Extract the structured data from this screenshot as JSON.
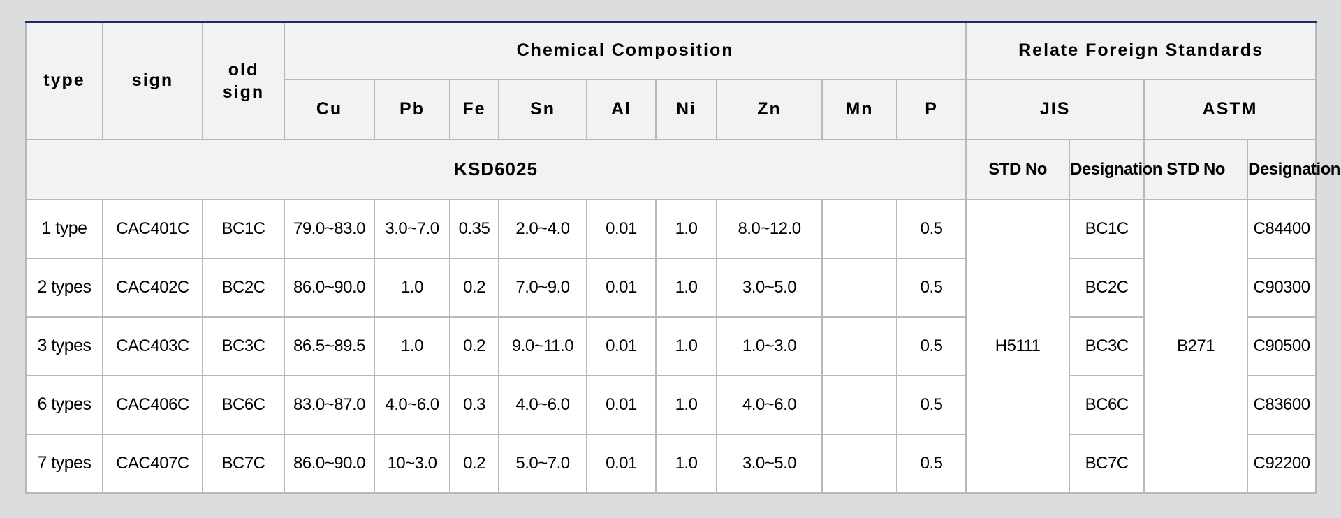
{
  "headers": {
    "type": "type",
    "sign": "sign",
    "old_sign": "old sign",
    "chemical_composition": "Chemical Composition",
    "relate_foreign_standards": "Relate Foreign Standards",
    "elements": [
      "Cu",
      "Pb",
      "Fe",
      "Sn",
      "Al",
      "Ni",
      "Zn",
      "Mn",
      "P"
    ],
    "jis": "JIS",
    "astm": "ASTM"
  },
  "standard_row": {
    "ksd": "KSD6025",
    "jis_std_no": "STD No",
    "jis_designation": "Designation",
    "astm_std_no": "STD No",
    "astm_designation": "Designation"
  },
  "jis_std_value": "H5111",
  "astm_std_value": "B271",
  "rows": [
    {
      "type": "1 type",
      "sign": "CAC401C",
      "old_sign": "BC1C",
      "cu": "79.0~83.0",
      "pb": "3.0~7.0",
      "fe": "0.35",
      "sn": "2.0~4.0",
      "al": "0.01",
      "ni": "1.0",
      "zn": "8.0~12.0",
      "mn": "",
      "p": "0.5",
      "jis_designation": "BC1C",
      "astm_designation": "C84400"
    },
    {
      "type": "2 types",
      "sign": "CAC402C",
      "old_sign": "BC2C",
      "cu": "86.0~90.0",
      "pb": "1.0",
      "fe": "0.2",
      "sn": "7.0~9.0",
      "al": "0.01",
      "ni": "1.0",
      "zn": "3.0~5.0",
      "mn": "",
      "p": "0.5",
      "jis_designation": "BC2C",
      "astm_designation": "C90300"
    },
    {
      "type": "3 types",
      "sign": "CAC403C",
      "old_sign": "BC3C",
      "cu": "86.5~89.5",
      "pb": "1.0",
      "fe": "0.2",
      "sn": "9.0~11.0",
      "al": "0.01",
      "ni": "1.0",
      "zn": "1.0~3.0",
      "mn": "",
      "p": "0.5",
      "jis_designation": "BC3C",
      "astm_designation": "C90500"
    },
    {
      "type": "6 types",
      "sign": "CAC406C",
      "old_sign": "BC6C",
      "cu": "83.0~87.0",
      "pb": "4.0~6.0",
      "fe": "0.3",
      "sn": "4.0~6.0",
      "al": "0.01",
      "ni": "1.0",
      "zn": "4.0~6.0",
      "mn": "",
      "p": "0.5",
      "jis_designation": "BC6C",
      "astm_designation": "C83600"
    },
    {
      "type": "7 types",
      "sign": "CAC407C",
      "old_sign": "BC7C",
      "cu": "86.0~90.0",
      "pb": "10~3.0",
      "fe": "0.2",
      "sn": "5.0~7.0",
      "al": "0.01",
      "ni": "1.0",
      "zn": "3.0~5.0",
      "mn": "",
      "p": "0.5",
      "jis_designation": "BC7C",
      "astm_designation": "C92200"
    }
  ],
  "colors": {
    "page_background": "#dcdedd",
    "header_background": "#f2f2f2",
    "accent_blue": "#2f6fb7",
    "top_rule": "#1c2c6b",
    "grid": "#b8b8b8"
  }
}
